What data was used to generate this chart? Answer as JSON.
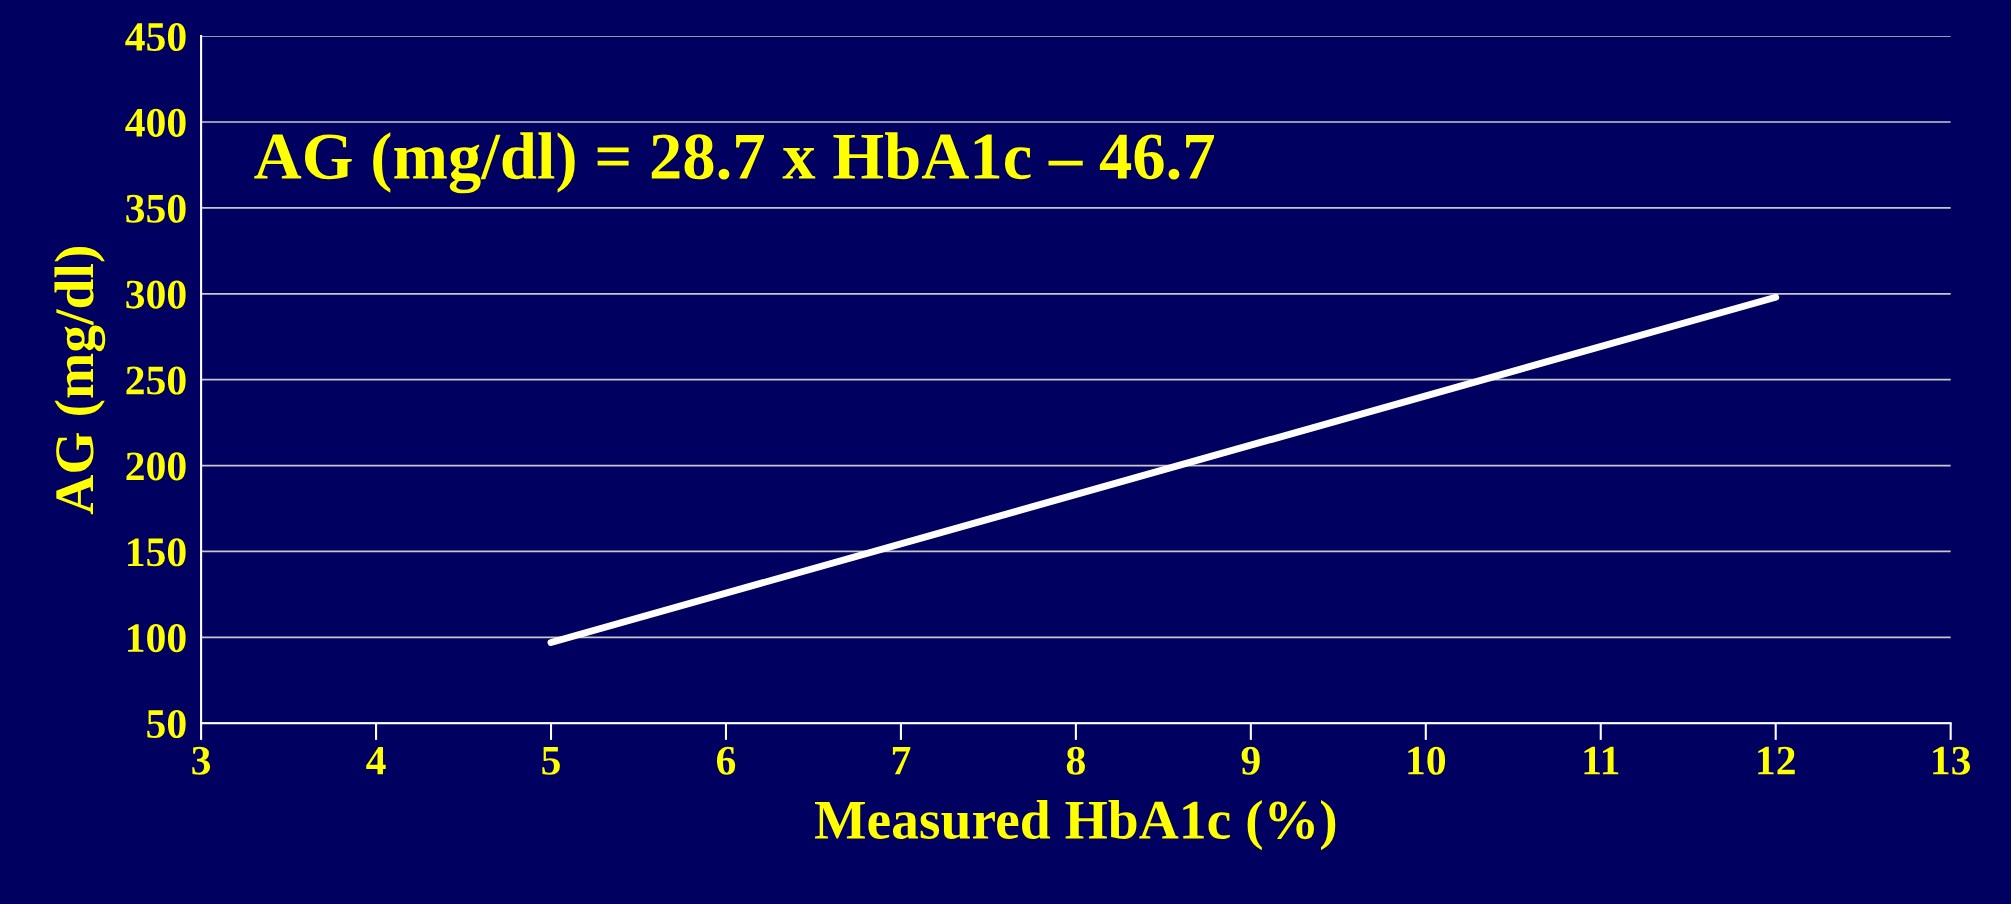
{
  "chart_data": {
    "type": "line",
    "xlabel": "Measured HbA1c (%)",
    "ylabel": "AG (mg/dl)",
    "annotations": [
      "AG (mg/dl) = 28.7 x HbA1c – 46.7"
    ],
    "series": [
      {
        "color": "#ffffff",
        "x": [
          5,
          12
        ],
        "values": [
          97,
          298
        ]
      }
    ],
    "xlim": [
      3,
      13
    ],
    "xticks": [
      3,
      4,
      5,
      6,
      7,
      8,
      9,
      10,
      11,
      12,
      13
    ],
    "ylim": [
      50,
      450
    ],
    "yticks": [
      50,
      100,
      150,
      200,
      250,
      300,
      350,
      400,
      450
    ],
    "grid": "y"
  }
}
